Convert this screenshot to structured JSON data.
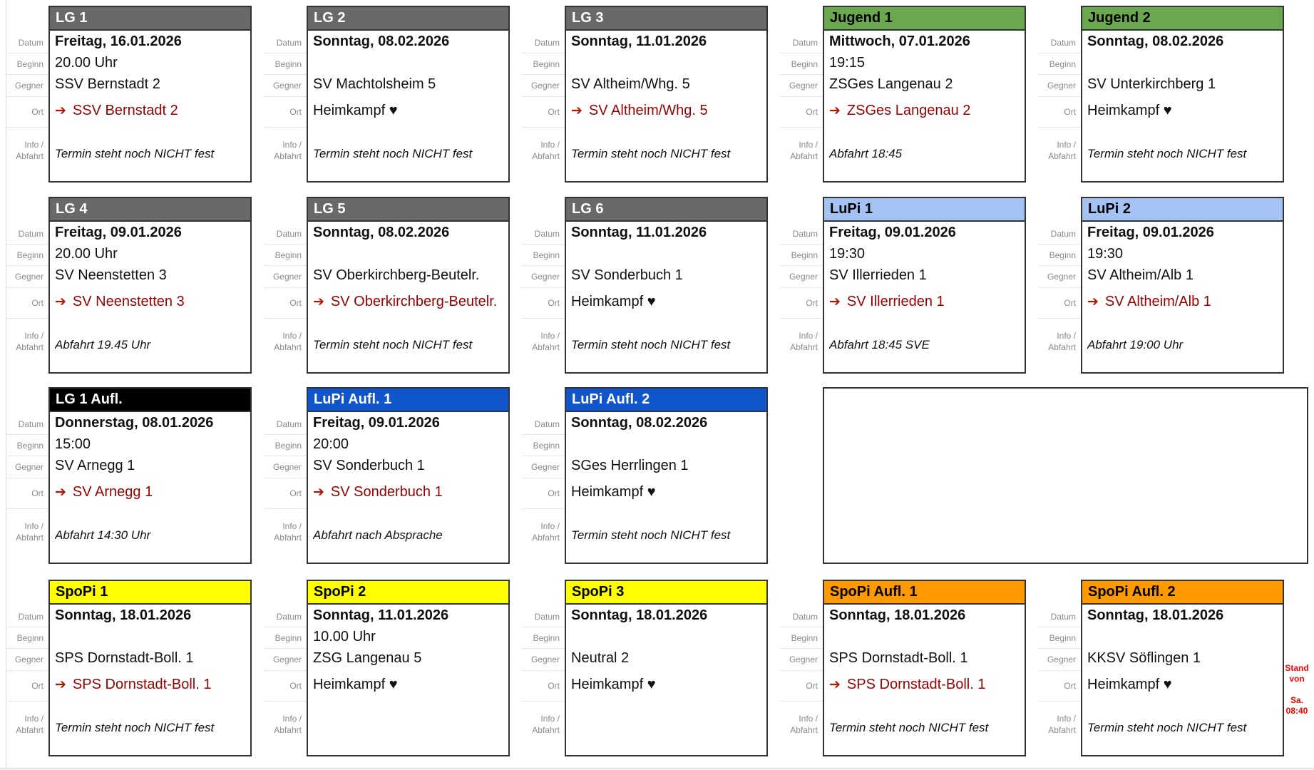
{
  "row_labels": [
    "Datum",
    "Beginn",
    "Gegner",
    "Ort"
  ],
  "info_label": [
    "Info /",
    "Abfahrt"
  ],
  "icons": {
    "away_arrow": "➔",
    "home_heart": "♥"
  },
  "stand_note": {
    "line1": "Stand von",
    "line2": "Sa. 08:40",
    "color": "#ff0000"
  },
  "colors": {
    "card_border": "#333333",
    "away_text": "#990000",
    "label_text": "#8a8a8a",
    "body_text": "#111111"
  },
  "themes": {
    "gray": {
      "bg": "#696969",
      "fg": "#ffffff"
    },
    "green": {
      "bg": "#6aa84f",
      "fg": "#000000"
    },
    "lightblue": {
      "bg": "#a4c2f4",
      "fg": "#000000"
    },
    "blue": {
      "bg": "#1155cc",
      "fg": "#ffffff"
    },
    "black": {
      "bg": "#000000",
      "fg": "#ffffff"
    },
    "yellow": {
      "bg": "#ffff00",
      "fg": "#000000"
    },
    "orange": {
      "bg": "#ff9900",
      "fg": "#000000"
    }
  },
  "rows": [
    {
      "cards": [
        {
          "title": "LG 1",
          "theme": "gray",
          "datum": "Freitag, 16.01.2026",
          "beginn": "20.00 Uhr",
          "gegner": "SSV Bernstadt 2",
          "ort": {
            "away": true,
            "text": "SSV Bernstadt 2"
          },
          "info": "Termin steht noch NICHT fest"
        },
        {
          "title": "LG 2",
          "theme": "gray",
          "datum": "Sonntag, 08.02.2026",
          "beginn": "",
          "gegner": "SV Machtolsheim 5",
          "ort": {
            "away": false,
            "text": "Heimkampf ♥"
          },
          "info": "Termin steht noch NICHT fest"
        },
        {
          "title": "LG 3",
          "theme": "gray",
          "datum": "Sonntag, 11.01.2026",
          "beginn": "",
          "gegner": "SV Altheim/Whg. 5",
          "ort": {
            "away": true,
            "text": "SV Altheim/Whg. 5"
          },
          "info": "Termin steht noch NICHT fest"
        },
        {
          "title": "Jugend 1",
          "theme": "green",
          "datum": "Mittwoch, 07.01.2026",
          "beginn": "19:15",
          "gegner": "ZSGes Langenau 2",
          "ort": {
            "away": true,
            "text": "ZSGes Langenau 2"
          },
          "info": "Abfahrt 18:45"
        },
        {
          "title": "Jugend 2",
          "theme": "green",
          "datum": "Sonntag, 08.02.2026",
          "beginn": "",
          "gegner": "SV Unterkirchberg 1",
          "ort": {
            "away": false,
            "text": "Heimkampf ♥"
          },
          "info": "Termin steht noch NICHT fest"
        }
      ]
    },
    {
      "cards": [
        {
          "title": "LG 4",
          "theme": "gray",
          "datum": "Freitag, 09.01.2026",
          "beginn": "20.00 Uhr",
          "gegner": "SV Neenstetten 3",
          "ort": {
            "away": true,
            "text": "SV Neenstetten 3"
          },
          "info": "Abfahrt 19.45 Uhr"
        },
        {
          "title": "LG 5",
          "theme": "gray",
          "datum": "Sonntag, 08.02.2026",
          "beginn": "",
          "gegner": "SV Oberkirchberg-Beutelr.",
          "ort": {
            "away": true,
            "text": "SV Oberkirchberg-Beutelr."
          },
          "info": "Termin steht noch NICHT fest"
        },
        {
          "title": "LG 6",
          "theme": "gray",
          "datum": "Sonntag, 11.01.2026",
          "beginn": "",
          "gegner": "SV Sonderbuch 1",
          "ort": {
            "away": false,
            "text": "Heimkampf ♥"
          },
          "info": "Termin steht noch NICHT fest"
        },
        {
          "title": "LuPi 1",
          "theme": "lightblue",
          "datum": "Freitag, 09.01.2026",
          "beginn": "19:30",
          "gegner": "SV Illerrieden 1",
          "ort": {
            "away": true,
            "text": "SV Illerrieden 1"
          },
          "info": "Abfahrt 18:45 SVE"
        },
        {
          "title": "LuPi 2",
          "theme": "lightblue",
          "datum": "Freitag, 09.01.2026",
          "beginn": "19:30",
          "gegner": "SV Altheim/Alb 1",
          "ort": {
            "away": true,
            "text": "SV Altheim/Alb 1"
          },
          "info": "Abfahrt 19:00 Uhr"
        }
      ]
    },
    {
      "cards": [
        {
          "title": "LG 1 Aufl.",
          "theme": "black",
          "datum": "Donnerstag, 08.01.2026",
          "beginn": "15:00",
          "gegner": "SV Arnegg 1",
          "ort": {
            "away": true,
            "text": "SV Arnegg 1"
          },
          "info": "Abfahrt 14:30 Uhr"
        },
        {
          "title": "LuPi Aufl. 1",
          "theme": "blue",
          "datum": "Freitag, 09.01.2026",
          "beginn": "20:00",
          "gegner": "SV Sonderbuch 1",
          "ort": {
            "away": true,
            "text": "SV Sonderbuch 1"
          },
          "info": "Abfahrt nach Absprache"
        },
        {
          "title": "LuPi Aufl. 2",
          "theme": "blue",
          "datum": "Sonntag, 08.02.2026",
          "beginn": "",
          "gegner": "SGes Herrlingen 1",
          "ort": {
            "away": false,
            "text": "Heimkampf ♥"
          },
          "info": "Termin steht noch NICHT fest"
        },
        {
          "empty": true
        }
      ]
    },
    {
      "cards": [
        {
          "title": "SpoPi 1",
          "theme": "yellow",
          "datum": "Sonntag, 18.01.2026",
          "beginn": "",
          "gegner": "SPS Dornstadt-Boll. 1",
          "ort": {
            "away": true,
            "text": "SPS Dornstadt-Boll. 1"
          },
          "info": "Termin steht noch NICHT fest"
        },
        {
          "title": "SpoPi 2",
          "theme": "yellow",
          "datum": "Sonntag, 11.01.2026",
          "beginn": "10.00 Uhr",
          "gegner": "ZSG Langenau 5",
          "ort": {
            "away": false,
            "text": "Heimkampf ♥"
          },
          "info": ""
        },
        {
          "title": "SpoPi 3",
          "theme": "yellow",
          "datum": "Sonntag, 18.01.2026",
          "beginn": "",
          "gegner": "Neutral 2",
          "ort": {
            "away": false,
            "text": "Heimkampf ♥"
          },
          "info": ""
        },
        {
          "title": "SpoPi Aufl. 1",
          "theme": "orange",
          "datum": "Sonntag, 18.01.2026",
          "beginn": "",
          "gegner": "SPS Dornstadt-Boll. 1",
          "ort": {
            "away": true,
            "text": "SPS Dornstadt-Boll. 1"
          },
          "info": "Termin steht noch NICHT fest"
        },
        {
          "title": "SpoPi Aufl. 2",
          "theme": "orange",
          "datum": "Sonntag, 18.01.2026",
          "beginn": "",
          "gegner": "KKSV Söflingen 1",
          "ort": {
            "away": false,
            "text": "Heimkampf ♥"
          },
          "info": "Termin steht noch NICHT fest"
        }
      ]
    }
  ]
}
